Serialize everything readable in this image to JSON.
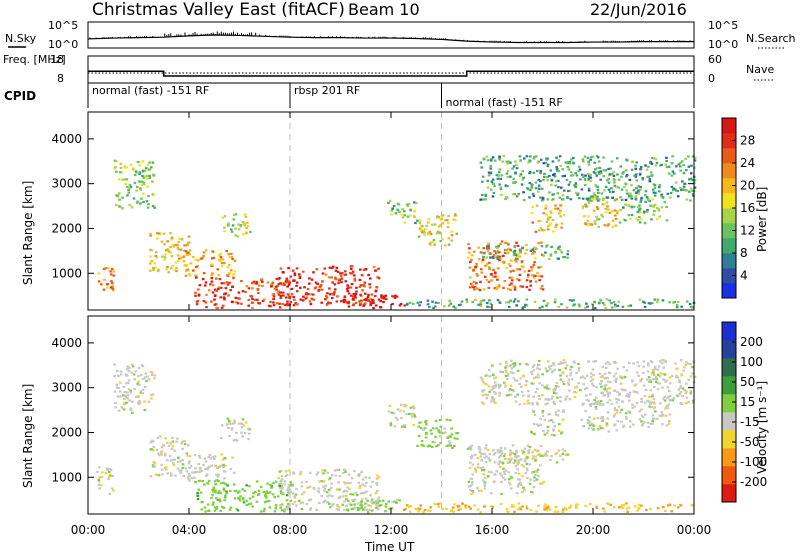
{
  "header": {
    "station": "Christmas Valley East (fitACF)",
    "beam": "Beam 10",
    "date": "22/Jun/2016"
  },
  "chart_data": [
    {
      "type": "line",
      "panel": "noise",
      "left_label": "N.Sky",
      "right_label": "N.Search",
      "left_ticks": [
        "10^5",
        "10^0"
      ],
      "right_ticks": [
        "10^5",
        "10^0"
      ],
      "x": [
        "00:00",
        "01:00",
        "02:00",
        "03:00",
        "04:00",
        "05:00",
        "06:00",
        "07:00",
        "08:00",
        "09:00",
        "10:00",
        "11:00",
        "12:00",
        "13:00",
        "14:00",
        "15:00",
        "16:00",
        "17:00",
        "18:00",
        "19:00",
        "20:00",
        "21:00",
        "22:00",
        "23:00",
        "24:00"
      ],
      "series": [
        {
          "values": [
            1.6,
            1.8,
            1.9,
            2.0,
            2.3,
            2.5,
            2.4,
            2.2,
            2.0,
            1.9,
            1.9,
            1.8,
            1.8,
            1.7,
            1.5,
            1.1,
            0.9,
            0.8,
            0.8,
            0.8,
            0.9,
            0.9,
            1.0,
            1.0,
            1.0
          ]
        }
      ]
    },
    {
      "type": "line",
      "panel": "frequency",
      "left_label": "Freq. [MHz]",
      "right_label": "Nave",
      "left_ticks": [
        "18",
        "8"
      ],
      "right_ticks": [
        "60",
        "0"
      ],
      "x_hours": [
        0,
        3.0,
        3.0,
        15.0,
        15.0,
        24
      ],
      "series": [
        {
          "values": [
            12.5,
            12.5,
            10.5,
            10.5,
            12.5,
            12.5
          ]
        }
      ]
    },
    {
      "type": "table",
      "panel": "cpid",
      "label": "CPID",
      "segments": [
        {
          "name": "normal (fast) -151 RF",
          "start_hour": 0,
          "end_hour": 8
        },
        {
          "name": "rbsp 201 RF",
          "start_hour": 8,
          "end_hour": 14
        },
        {
          "name": "normal (fast) -151 RF",
          "start_hour": 14,
          "end_hour": 24
        }
      ]
    },
    {
      "type": "heatmap",
      "panel": "power",
      "ylabel": "Slant Range [km]",
      "ylim": [
        180,
        4600
      ],
      "yticks": [
        1000,
        2000,
        3000,
        4000
      ],
      "xlim_hours": [
        0,
        24
      ],
      "colorbar_label": "Power [dB]",
      "colorbar_ticks": [
        4,
        8,
        12,
        16,
        20,
        24,
        28
      ],
      "colorbar_colors": [
        "#1c2ee6",
        "#2f4da6",
        "#2e7f94",
        "#43a86b",
        "#69c25d",
        "#a9d24a",
        "#f2e21b",
        "#f7b81c",
        "#f08a1c",
        "#ec5a1a",
        "#e02c19",
        "#d81612"
      ],
      "features": [
        {
          "t0": 0.3,
          "t1": 1.0,
          "r0": 600,
          "r1": 1200,
          "p": 22
        },
        {
          "t0": 1.0,
          "t1": 2.6,
          "r0": 2400,
          "r1": 3500,
          "p": 13
        },
        {
          "t0": 2.4,
          "t1": 4.0,
          "r0": 1000,
          "r1": 1900,
          "p": 18
        },
        {
          "t0": 3.8,
          "t1": 5.8,
          "r0": 900,
          "r1": 1500,
          "p": 20
        },
        {
          "t0": 5.2,
          "t1": 6.4,
          "r0": 1800,
          "r1": 2300,
          "p": 14
        },
        {
          "t0": 4.2,
          "t1": 8.0,
          "r0": 200,
          "r1": 900,
          "p": 26
        },
        {
          "t0": 7.5,
          "t1": 11.5,
          "r0": 250,
          "r1": 1150,
          "p": 27
        },
        {
          "t0": 10.0,
          "t1": 12.5,
          "r0": 200,
          "r1": 500,
          "p": 30
        },
        {
          "t0": 11.8,
          "t1": 13.0,
          "r0": 2100,
          "r1": 2600,
          "p": 12
        },
        {
          "t0": 13.0,
          "t1": 14.6,
          "r0": 1600,
          "r1": 2300,
          "p": 16
        },
        {
          "t0": 15.0,
          "t1": 18.0,
          "r0": 600,
          "r1": 1700,
          "p": 22
        },
        {
          "t0": 15.5,
          "t1": 19.0,
          "r0": 1300,
          "r1": 1600,
          "p": 10
        },
        {
          "t0": 17.5,
          "t1": 18.8,
          "r0": 1900,
          "r1": 2500,
          "p": 18
        },
        {
          "t0": 19.5,
          "t1": 21.0,
          "r0": 2000,
          "r1": 2700,
          "p": 17
        },
        {
          "t0": 21.0,
          "t1": 23.0,
          "r0": 2100,
          "r1": 2700,
          "p": 12
        },
        {
          "t0": 15.5,
          "t1": 24.0,
          "r0": 2600,
          "r1": 3600,
          "p": 9
        },
        {
          "t0": 12.5,
          "t1": 24.0,
          "r0": 200,
          "r1": 400,
          "p": 10
        }
      ]
    },
    {
      "type": "heatmap",
      "panel": "velocity",
      "ylabel": "Slant Range [km]",
      "ylim": [
        180,
        4600
      ],
      "yticks": [
        1000,
        2000,
        3000,
        4000
      ],
      "xlim_hours": [
        0,
        24
      ],
      "xticks": [
        "00:00",
        "04:00",
        "08:00",
        "12:00",
        "16:00",
        "20:00",
        "00:00"
      ],
      "xlabel": "Time UT",
      "colorbar_label": "Velocity [m s⁻¹]",
      "colorbar_ticks": [
        -200,
        -100,
        -50,
        -15,
        15,
        50,
        100,
        200
      ],
      "colorbar_colors": [
        "#e01a10",
        "#f2590e",
        "#f89a17",
        "#f2d42e",
        "#c9c9c1",
        "#7fcf3f",
        "#3e9e3a",
        "#2e6f4c",
        "#27429a",
        "#1a2fd0"
      ],
      "features": [
        {
          "t0": 0.3,
          "t1": 1.0,
          "r0": 600,
          "r1": 1200,
          "v": 0
        },
        {
          "t0": 1.0,
          "t1": 2.6,
          "r0": 2400,
          "r1": 3500,
          "v": 0
        },
        {
          "t0": 2.4,
          "t1": 4.0,
          "r0": 1000,
          "r1": 1900,
          "v": 0
        },
        {
          "t0": 3.8,
          "t1": 5.8,
          "r0": 900,
          "r1": 1500,
          "v": 0
        },
        {
          "t0": 5.2,
          "t1": 6.4,
          "r0": 1800,
          "r1": 2300,
          "v": 0
        },
        {
          "t0": 4.2,
          "t1": 8.0,
          "r0": 200,
          "r1": 900,
          "v": 35
        },
        {
          "t0": 7.5,
          "t1": 11.5,
          "r0": 250,
          "r1": 1150,
          "v": 0
        },
        {
          "t0": 10.0,
          "t1": 12.5,
          "r0": 200,
          "r1": 500,
          "v": 30
        },
        {
          "t0": 11.8,
          "t1": 13.0,
          "r0": 2100,
          "r1": 2600,
          "v": 0
        },
        {
          "t0": 13.0,
          "t1": 14.6,
          "r0": 1600,
          "r1": 2300,
          "v": 30
        },
        {
          "t0": 15.0,
          "t1": 18.0,
          "r0": 600,
          "r1": 1700,
          "v": 0
        },
        {
          "t0": 15.5,
          "t1": 19.0,
          "r0": 1300,
          "r1": 1600,
          "v": 0
        },
        {
          "t0": 17.5,
          "t1": 18.8,
          "r0": 1900,
          "r1": 2500,
          "v": 0
        },
        {
          "t0": 19.5,
          "t1": 21.0,
          "r0": 2000,
          "r1": 2700,
          "v": 0
        },
        {
          "t0": 21.0,
          "t1": 23.0,
          "r0": 2100,
          "r1": 2700,
          "v": 0
        },
        {
          "t0": 15.5,
          "t1": 24.0,
          "r0": 2600,
          "r1": 3600,
          "v": 0
        },
        {
          "t0": 12.5,
          "t1": 24.0,
          "r0": 200,
          "r1": 400,
          "v": -40
        }
      ]
    }
  ]
}
